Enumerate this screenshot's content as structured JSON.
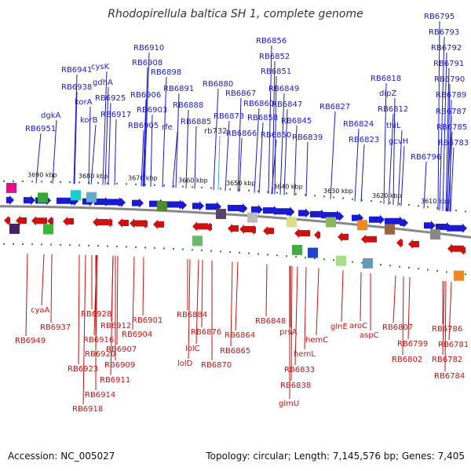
{
  "title": "Rhodopirellula baltica SH 1, complete genome",
  "accession": "Accession: NC_005027",
  "topology": "Topology: circular; Length: 7,145,576 bp; Genes: 7,405",
  "colors": {
    "top_gene": "#1a1ad0",
    "bottom_gene": "#cc1111",
    "highlight": "#33aaee",
    "backbone": "#888888",
    "tick": "#2a8a2a"
  },
  "scale": [
    {
      "label": "3690 kbp"
    },
    {
      "label": "3680 kbp"
    },
    {
      "label": "3670 kbp"
    },
    {
      "label": "3660 kbp"
    },
    {
      "label": "3650 kbp"
    },
    {
      "label": "3640 kbp"
    },
    {
      "label": "3630 kbp"
    },
    {
      "label": "3620 kbp"
    },
    {
      "label": "3610 kbp"
    }
  ],
  "top_labels": [
    "RB6951",
    "dgkA",
    "RB6941",
    "RB6938",
    "korA",
    "korB",
    "cysK",
    "gdhA",
    "RB6925",
    "RB6917",
    "RB6910",
    "RB6908",
    "RB6906",
    "RB6905",
    "RB6903",
    "rfe",
    "RB6898",
    "RB6891",
    "RB6888",
    "RB6885",
    "RB6880",
    "RB6873",
    "RB6867",
    "RB6866",
    "rb732",
    "RB6860",
    "RB6858",
    "RB6856",
    "RB6852",
    "RB6851",
    "RB6850",
    "RB6849",
    "RB6847",
    "RB6845",
    "RB6839",
    "RB6827",
    "RB6824",
    "RB6823",
    "RB6818",
    "dipZ",
    "RB6812",
    "thiL",
    "gcvH",
    "RB6796",
    "RB6795",
    "RB6793",
    "RB6792",
    "RB6791",
    "RB6790",
    "RB6789",
    "RB6787",
    "RB6785",
    "RB6783"
  ],
  "bottom_labels": [
    "cyaA",
    "RB6949",
    "RB6937",
    "RB6928",
    "RB6916",
    "RB6920",
    "RB6923",
    "RB6914",
    "RB6918",
    "RB6912",
    "RB6907",
    "RB6909",
    "RB6911",
    "RB6904",
    "RB6901",
    "RB6884",
    "lolC",
    "lolD",
    "RB6876",
    "RB6870",
    "RB6864",
    "RB6865",
    "RB6848",
    "prsA",
    "RB6833",
    "hemL",
    "RB6838",
    "glmU",
    "hemC",
    "glnE",
    "aroC",
    "aspC",
    "RB6807",
    "RB6799",
    "RB6802",
    "RB6786",
    "RB6781",
    "RB6782",
    "RB6784"
  ]
}
